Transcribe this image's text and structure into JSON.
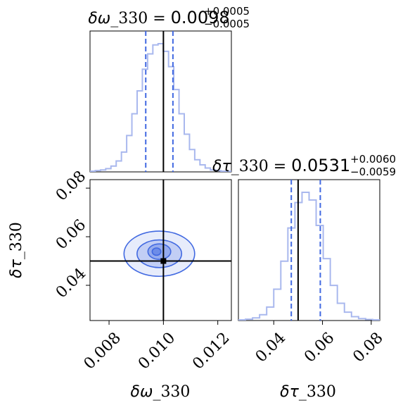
{
  "chart_data": {
    "type": "corner",
    "colors": {
      "hist": "#a9b8ee",
      "contour_line": "#4169e1",
      "quantile": "#4169e1",
      "truth": "#000000"
    },
    "parameters": [
      {
        "symbol": "δω",
        "name": "_330",
        "axis_label": "δω_330",
        "title_prefix": "δω_330 = ",
        "median": "0.0098",
        "err_plus": "+0.0005",
        "err_minus": "−0.0005",
        "truth": 0.01,
        "quantiles": [
          0.00935,
          0.01035
        ],
        "range": [
          0.0073,
          0.0125
        ],
        "ticks": [
          0.008,
          0.01,
          0.012
        ],
        "tick_labels": [
          "0.008",
          "0.010",
          "0.012"
        ]
      },
      {
        "symbol": "δτ",
        "name": "_330",
        "axis_label": "δτ_330",
        "title_prefix": "δτ_330 = ",
        "median": "0.0531",
        "err_plus": "+0.0060",
        "err_minus": "−0.0059",
        "truth": 0.05,
        "quantiles": [
          0.0472,
          0.0591
        ],
        "range": [
          0.0255,
          0.0835
        ],
        "ticks": [
          0.04,
          0.06,
          0.08
        ],
        "tick_labels": [
          "0.04",
          "0.06",
          "0.08"
        ]
      }
    ],
    "hist_x": {
      "centers": [
        0.0073,
        0.0075,
        0.0077,
        0.0079,
        0.0081,
        0.0083,
        0.0085,
        0.0087,
        0.0089,
        0.0091,
        0.0093,
        0.0095,
        0.0097,
        0.0099,
        0.0101,
        0.0103,
        0.0105,
        0.0107,
        0.0109,
        0.0111,
        0.0113,
        0.0115,
        0.0117,
        0.0119,
        0.0121,
        0.0123,
        0.0125
      ],
      "counts": [
        0.0,
        0.005,
        0.01,
        0.02,
        0.04,
        0.08,
        0.15,
        0.28,
        0.45,
        0.63,
        0.8,
        0.92,
        0.99,
        1.0,
        0.94,
        0.82,
        0.64,
        0.45,
        0.29,
        0.17,
        0.09,
        0.05,
        0.025,
        0.01,
        0.004,
        0.0,
        0.0
      ]
    },
    "hist_y": {
      "centers": [
        0.0255,
        0.0285,
        0.0315,
        0.0345,
        0.0375,
        0.0405,
        0.0435,
        0.0465,
        0.0495,
        0.0525,
        0.0555,
        0.0585,
        0.0615,
        0.0645,
        0.0675,
        0.0705,
        0.0735,
        0.0765,
        0.0795,
        0.0825
      ],
      "counts": [
        0.0,
        0.005,
        0.015,
        0.04,
        0.1,
        0.24,
        0.46,
        0.72,
        0.92,
        1.0,
        0.94,
        0.74,
        0.48,
        0.27,
        0.13,
        0.06,
        0.025,
        0.01,
        0.003,
        0.0
      ]
    },
    "contours_2d": {
      "center": [
        0.00985,
        0.053
      ],
      "truth_marker": [
        0.01,
        0.05
      ],
      "levels": [
        {
          "rx": 0.0013,
          "ry": 0.0093,
          "fill_opacity": 0.25
        },
        {
          "rx": 0.00082,
          "ry": 0.0057,
          "fill_opacity": 0.45
        },
        {
          "rx": 0.00042,
          "ry": 0.0032,
          "fill_opacity": 0.7
        },
        {
          "rx": 0.00016,
          "ry": 0.0015,
          "fill_opacity": 0.95
        }
      ]
    }
  }
}
